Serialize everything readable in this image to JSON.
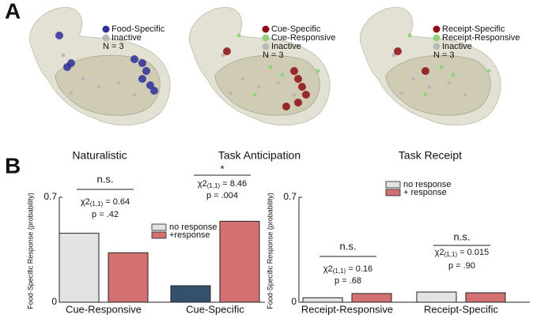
{
  "panel_a": {
    "label": "A",
    "views": [
      {
        "title": "Naturalistic",
        "legend": [
          {
            "name": "Food-Specific",
            "color": "#2f2f9a"
          },
          {
            "name": "Inactive",
            "color": "#b9b9b9"
          }
        ],
        "n": "N = 3"
      },
      {
        "title": "Task Anticipation",
        "legend": [
          {
            "name": "Cue-Specific",
            "color": "#8e0d12"
          },
          {
            "name": "Cue-Responsive",
            "color": "#8fd37a"
          },
          {
            "name": "Inactive",
            "color": "#b9b9b9"
          }
        ],
        "n": "N = 3"
      },
      {
        "title": "Task Receipt",
        "legend": [
          {
            "name": "Receipt-Specific",
            "color": "#8e0d12"
          },
          {
            "name": "Receipt-Responsive",
            "color": "#8fd37a"
          },
          {
            "name": "Inactive",
            "color": "#b9b9b9"
          }
        ],
        "n": "N = 3"
      }
    ]
  },
  "panel_b": {
    "label": "B"
  },
  "chart_data": [
    {
      "type": "bar",
      "y_label": "Food-Specific Response (probability)",
      "categories": [
        "Cue-Responsive",
        "Cue-Specific"
      ],
      "series": [
        {
          "name": "no response",
          "color": "#e3e3e3",
          "colors": [
            "#e3e3e3",
            "#34506a"
          ],
          "values": [
            0.46,
            0.11
          ]
        },
        {
          "name": "+response",
          "color": "#d37072",
          "values": [
            0.33,
            0.54
          ]
        }
      ],
      "ylim": [
        0,
        0.7
      ],
      "yticks": [
        0,
        0.7
      ],
      "annotations": [
        {
          "sig": "n.s.",
          "chi": "χ2",
          "df": "(1,1)",
          "stat": " = 0.64",
          "p": "p = .42"
        },
        {
          "sig": "*",
          "chi": "χ2",
          "df": "(1,1)",
          "stat": " = 8.46",
          "p": "p = .004"
        }
      ]
    },
    {
      "type": "bar",
      "y_label": "Food-Specific Response (probability)",
      "categories": [
        "Receipt-Responsive",
        "Receipt-Specific"
      ],
      "series": [
        {
          "name": "no response",
          "color": "#e3e3e3",
          "values": [
            0.03,
            0.068
          ]
        },
        {
          "name": "+ response",
          "color": "#d37072",
          "values": [
            0.058,
            0.063
          ]
        }
      ],
      "ylim": [
        0,
        0.7
      ],
      "yticks": [
        0,
        0.7
      ],
      "annotations": [
        {
          "sig": "n.s.",
          "chi": "χ2",
          "df": "(1,1)",
          "stat": " = 0.16",
          "p": "p = .68"
        },
        {
          "sig": "n.s.",
          "chi": "χ2",
          "df": "(1,1)",
          "stat": " = 0.015",
          "p": "p = .90"
        }
      ]
    }
  ]
}
